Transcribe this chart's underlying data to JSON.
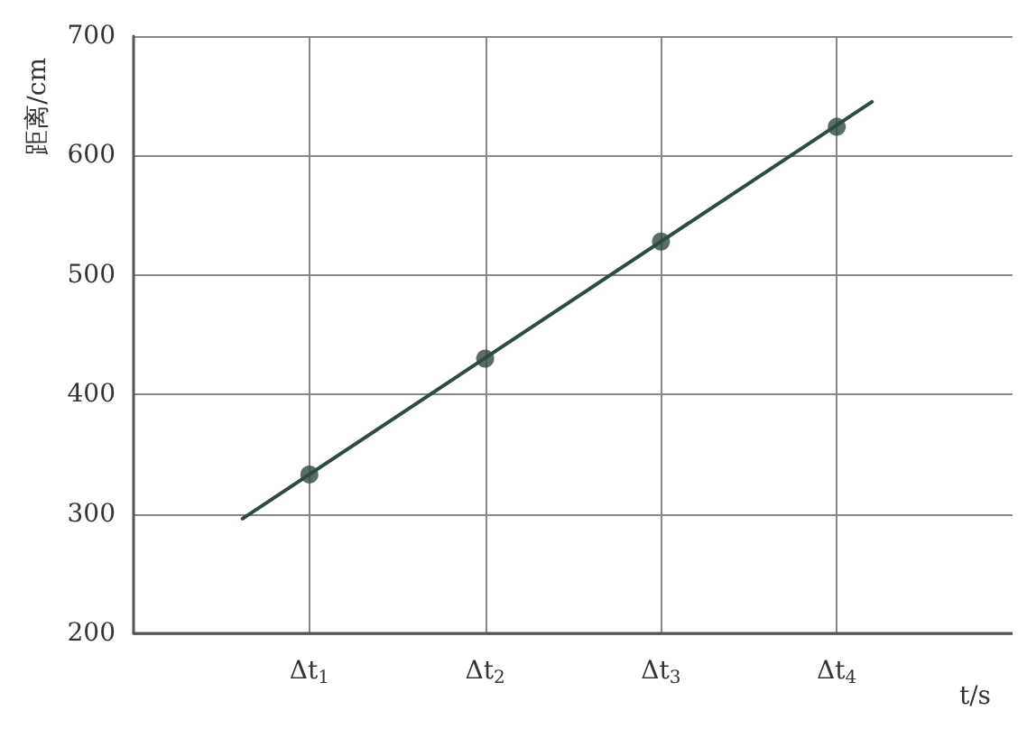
{
  "chart_data": {
    "type": "scatter",
    "xlabel": "t/s",
    "ylabel": "距离/cm",
    "x": [
      1,
      2,
      3,
      4
    ],
    "values": [
      333,
      430,
      528,
      624
    ],
    "color": "#2f4a42",
    "marker": "circle",
    "xlim": [
      0,
      5
    ],
    "xticks": [
      {
        "value": 1,
        "label": "Δt$_{1}$"
      },
      {
        "value": 2,
        "label": "Δt$_{2}$"
      },
      {
        "value": 3,
        "label": "Δt$_{3}$"
      },
      {
        "value": 4,
        "label": "Δt$_{4}$"
      }
    ],
    "ylim": [
      200,
      700
    ],
    "yticks": [
      200,
      300,
      400,
      500,
      600,
      700
    ],
    "grid": true,
    "series": [
      {
        "type": "line",
        "x": [
          0.62,
          4.2
        ],
        "values": [
          296,
          645
        ],
        "color": "#2f4a42",
        "line_style": "solid",
        "marker": "none"
      }
    ]
  }
}
